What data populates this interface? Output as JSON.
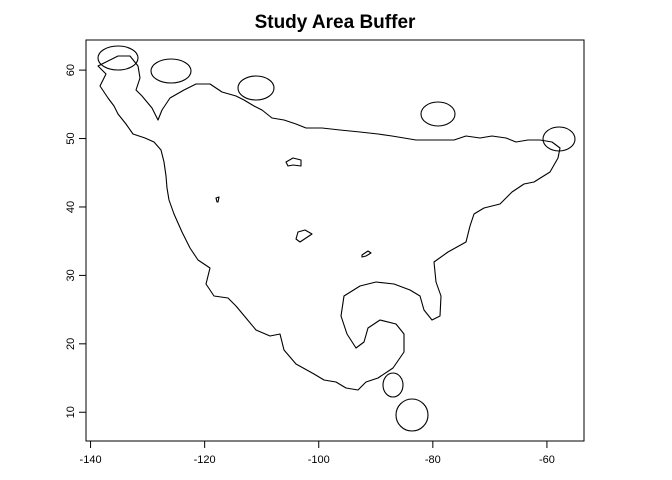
{
  "title": "Study Area Buffer",
  "map": {
    "x_ticks": [
      {
        "value": -140,
        "label": "-140"
      },
      {
        "value": -120,
        "label": "-120"
      },
      {
        "value": -100,
        "label": "-100"
      },
      {
        "value": -80,
        "label": "-80"
      },
      {
        "value": -60,
        "label": "-60"
      }
    ],
    "y_ticks": [
      {
        "value": 10,
        "label": "10"
      },
      {
        "value": 20,
        "label": "20"
      },
      {
        "value": 30,
        "label": "30"
      },
      {
        "value": 40,
        "label": "40"
      },
      {
        "value": 50,
        "label": "50"
      },
      {
        "value": 60,
        "label": "60"
      }
    ],
    "xlim": [
      -140.8,
      -53.5
    ],
    "ylim": [
      5.8,
      64.4
    ]
  }
}
